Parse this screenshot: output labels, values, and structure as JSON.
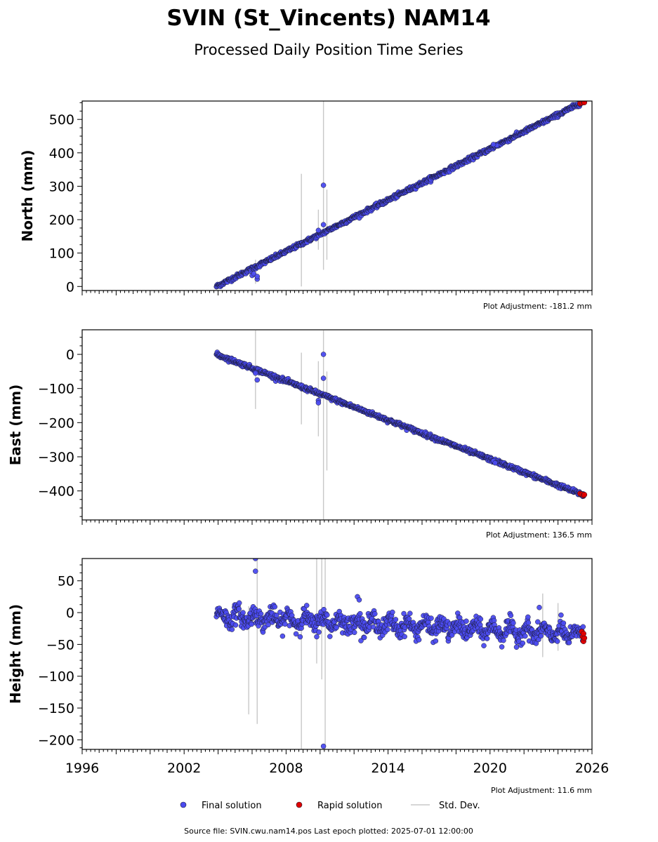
{
  "title": "SVIN (St_Vincents) NAM14",
  "subtitle": "Processed Daily Position Time Series",
  "legend": {
    "final": "Final solution",
    "rapid": "Rapid solution",
    "stddev": "Std. Dev."
  },
  "colors": {
    "final": "#4b4bf0",
    "rapid": "#e00000",
    "edge": "#1a1a2e",
    "stddev": "#c8c8c8"
  },
  "footer": "Source file: SVIN.cwu.nam14.pos  Last epoch plotted: 2025-07-01 12:00:00",
  "chart_data": [
    {
      "type": "scatter",
      "ylabel": "North (mm)",
      "adjustment": "Plot Adjustment: -181.2 mm",
      "xlim": [
        1996,
        2026
      ],
      "ylim": [
        -12,
        555
      ],
      "yticks": [
        0,
        100,
        200,
        300,
        400,
        500
      ],
      "trend": {
        "start": [
          2003.9,
          0
        ],
        "end": [
          2025.5,
          553
        ]
      },
      "noise": 3,
      "outliers": [
        [
          2006.0,
          33
        ],
        [
          2006.1,
          38
        ],
        [
          2006.3,
          22
        ],
        [
          2006.3,
          30
        ],
        [
          2009.9,
          168
        ],
        [
          2010.2,
          185
        ],
        [
          2010.2,
          303
        ],
        [
          2020.4,
          422
        ],
        [
          2020.2,
          425
        ]
      ],
      "stddev_bars": [
        [
          2006.2,
          8,
          80
        ],
        [
          2008.9,
          0,
          337
        ],
        [
          2009.9,
          110,
          230
        ],
        [
          2010.2,
          50,
          555
        ],
        [
          2010.4,
          80,
          290
        ]
      ],
      "rapid_points": [
        [
          2025.3,
          548
        ],
        [
          2025.4,
          550
        ],
        [
          2025.5,
          553
        ],
        [
          2025.55,
          551
        ]
      ]
    },
    {
      "type": "scatter",
      "ylabel": "East (mm)",
      "adjustment": "Plot Adjustment: 136.5 mm",
      "xlim": [
        1996,
        2026
      ],
      "ylim": [
        -485,
        72
      ],
      "yticks": [
        0,
        -100,
        -200,
        -300,
        -400
      ],
      "trend": {
        "start": [
          2003.9,
          0
        ],
        "end": [
          2025.5,
          -412
        ]
      },
      "noise": 3,
      "outliers": [
        [
          2006.2,
          -55
        ],
        [
          2006.3,
          -75
        ],
        [
          2009.9,
          -135
        ],
        [
          2009.9,
          -142
        ],
        [
          2010.2,
          0
        ],
        [
          2010.2,
          -70
        ],
        [
          2020.2,
          -312
        ],
        [
          2020.3,
          -318
        ]
      ],
      "stddev_bars": [
        [
          2006.2,
          -160,
          70
        ],
        [
          2008.9,
          -205,
          5
        ],
        [
          2009.9,
          -240,
          -20
        ],
        [
          2010.2,
          -485,
          70
        ],
        [
          2010.4,
          -340,
          -50
        ]
      ],
      "rapid_points": [
        [
          2025.3,
          -408
        ],
        [
          2025.4,
          -410
        ],
        [
          2025.5,
          -413
        ],
        [
          2025.55,
          -411
        ]
      ]
    },
    {
      "type": "scatter",
      "ylabel": "Height (mm)",
      "adjustment": "Plot Adjustment: 11.6 mm",
      "xlim": [
        1996,
        2026
      ],
      "ylim": [
        -215,
        85
      ],
      "yticks": [
        50,
        0,
        -50,
        -100,
        -150,
        -200
      ],
      "xticks": [
        1996,
        2002,
        2008,
        2014,
        2020,
        2026
      ],
      "trend": {
        "start": [
          2003.9,
          -5
        ],
        "end": [
          2025.5,
          -35
        ]
      },
      "noise": 12,
      "outliers": [
        [
          2006.2,
          85
        ],
        [
          2006.2,
          65
        ],
        [
          2009.8,
          -38
        ],
        [
          2010.2,
          -210
        ],
        [
          2012.2,
          25
        ],
        [
          2012.3,
          20
        ],
        [
          2022.9,
          8
        ]
      ],
      "stddev_bars": [
        [
          2005.8,
          -160,
          10
        ],
        [
          2006.3,
          -175,
          85
        ],
        [
          2008.9,
          -215,
          -10
        ],
        [
          2009.8,
          -80,
          85
        ],
        [
          2010.1,
          -105,
          85
        ],
        [
          2010.3,
          -215,
          85
        ],
        [
          2023.1,
          -70,
          30
        ],
        [
          2024.0,
          -60,
          15
        ]
      ],
      "rapid_points": [
        [
          2025.4,
          -30
        ],
        [
          2025.45,
          -38
        ],
        [
          2025.5,
          -45
        ],
        [
          2025.55,
          -40
        ],
        [
          2025.5,
          -33
        ]
      ]
    }
  ]
}
